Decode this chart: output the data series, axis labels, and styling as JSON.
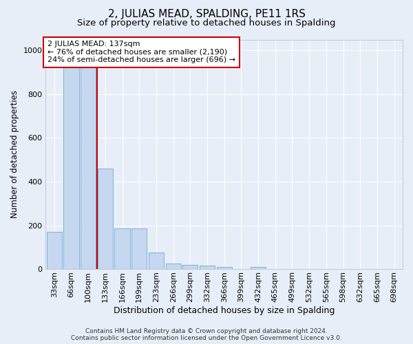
{
  "title": "2, JULIAS MEAD, SPALDING, PE11 1RS",
  "subtitle": "Size of property relative to detached houses in Spalding",
  "xlabel": "Distribution of detached houses by size in Spalding",
  "ylabel": "Number of detached properties",
  "bar_labels": [
    "33sqm",
    "66sqm",
    "100sqm",
    "133sqm",
    "166sqm",
    "199sqm",
    "233sqm",
    "266sqm",
    "299sqm",
    "332sqm",
    "366sqm",
    "399sqm",
    "432sqm",
    "465sqm",
    "499sqm",
    "532sqm",
    "565sqm",
    "598sqm",
    "632sqm",
    "665sqm",
    "698sqm"
  ],
  "bar_values": [
    170,
    970,
    1000,
    460,
    185,
    185,
    75,
    25,
    20,
    15,
    10,
    0,
    10,
    0,
    0,
    0,
    0,
    0,
    0,
    0,
    0
  ],
  "bar_color": "#c5d8f0",
  "bar_edge_color": "#6aaad4",
  "background_color": "#e8eef8",
  "grid_color": "#ffffff",
  "red_line_color": "#cc0000",
  "red_line_x": 2.5,
  "annotation_text": "2 JULIAS MEAD: 137sqm\n← 76% of detached houses are smaller (2,190)\n24% of semi-detached houses are larger (696) →",
  "annotation_box_color": "#ffffff",
  "annotation_box_edge": "#cc0000",
  "footer_text": "Contains HM Land Registry data © Crown copyright and database right 2024.\nContains public sector information licensed under the Open Government Licence v3.0.",
  "ylim": [
    0,
    1050
  ],
  "yticks": [
    0,
    200,
    400,
    600,
    800,
    1000
  ],
  "title_fontsize": 11,
  "subtitle_fontsize": 9.5,
  "xlabel_fontsize": 9,
  "ylabel_fontsize": 8.5,
  "tick_fontsize": 8,
  "annotation_fontsize": 8,
  "footer_fontsize": 6.5
}
